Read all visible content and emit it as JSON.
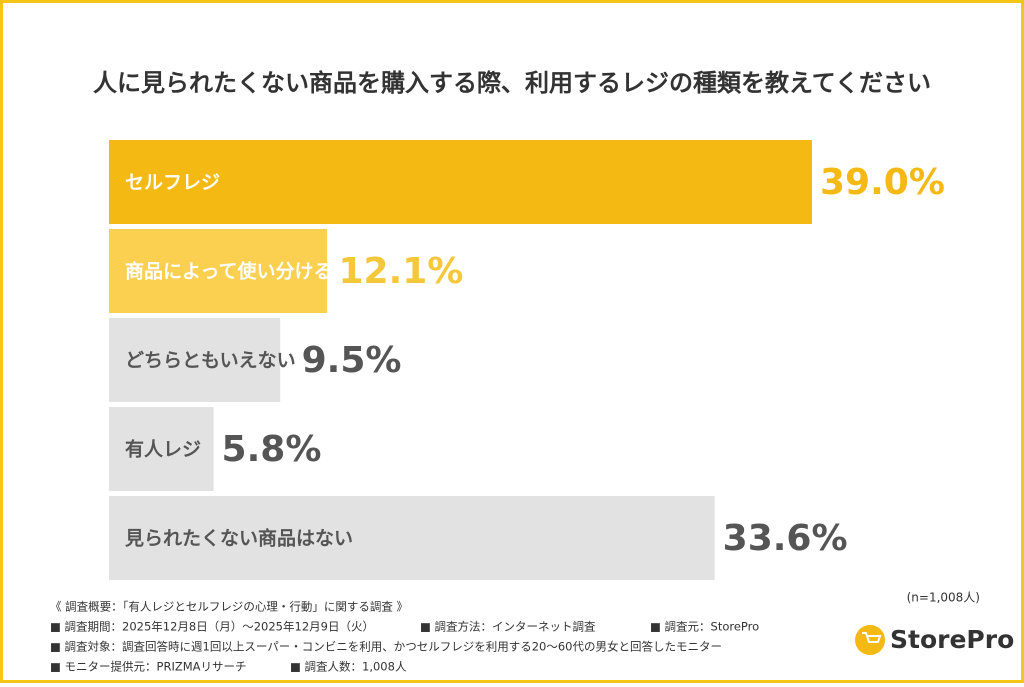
{
  "chart_data": {
    "type": "hbar",
    "title": "人に見られたくない商品を購入する際、利用するレジの種類を教えてください",
    "categories": [
      "セルフレジ",
      "商品によって使い分ける",
      "どちらともいえない",
      "有人レジ",
      "見られたくない商品はない"
    ],
    "values": [
      39.0,
      12.1,
      9.5,
      5.8,
      33.6
    ],
    "value_labels": [
      "39.0%",
      "12.1%",
      "9.5%",
      "5.8%",
      "33.6%"
    ],
    "colors": [
      "#f5b914",
      "#fbcf4f",
      "#e2e2e2",
      "#e2e2e2",
      "#e2e2e2"
    ],
    "label_colors": [
      "#ffffff",
      "#ffffff",
      "#555555",
      "#555555",
      "#555555"
    ],
    "value_colors": [
      "#f5b914",
      "#f5c73a",
      "#555555",
      "#555555",
      "#555555"
    ],
    "sample_note": "(n=1,008人)"
  },
  "footer": {
    "heading": "《 調査概要：「有人レジとセルフレジの心理・行動」に関する調査 》",
    "lines": [
      [
        "■ 調査期間：2025年12月8日（月）〜2025年12月9日（火）",
        "■ 調査方法：インターネット調査",
        "■ 調査元：StorePro"
      ],
      [
        "■ 調査対象：調査回答時に週1回以上スーパー・コンビニを利用、かつセルフレジを利用する20〜60代の男女と回答したモニター"
      ],
      [
        "■ モニター提供元：PRIZMAリサーチ",
        "■ 調査人数：1,008人"
      ]
    ],
    "logo": "StorePro"
  }
}
